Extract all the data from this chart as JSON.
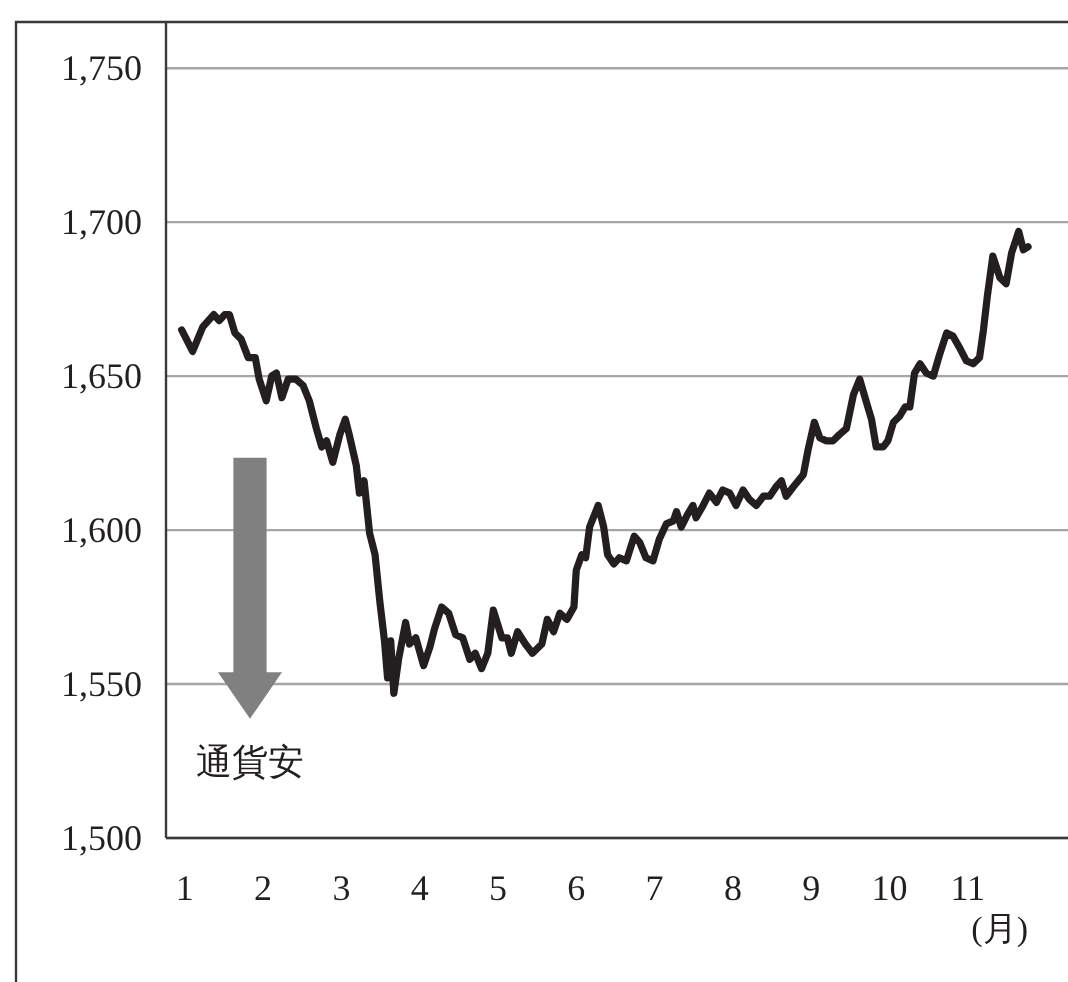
{
  "chart_data": {
    "type": "line",
    "xlabel": "(月)",
    "annotations": [
      "通貨安"
    ],
    "x": [
      0.96,
      1.1,
      1.23,
      1.37,
      1.44,
      1.51,
      1.57,
      1.64,
      1.72,
      1.81,
      1.9,
      1.95,
      2.04,
      2.11,
      2.17,
      2.24,
      2.32,
      2.42,
      2.51,
      2.59,
      2.68,
      2.75,
      2.81,
      2.89,
      2.98,
      3.05,
      3.1,
      3.19,
      3.23,
      3.29,
      3.36,
      3.43,
      3.49,
      3.55,
      3.59,
      3.63,
      3.67,
      3.73,
      3.82,
      3.87,
      3.95,
      4.05,
      4.13,
      4.19,
      4.28,
      4.37,
      4.46,
      4.55,
      4.64,
      4.71,
      4.79,
      4.87,
      4.94,
      5.05,
      5.12,
      5.17,
      5.25,
      5.35,
      5.44,
      5.56,
      5.63,
      5.71,
      5.79,
      5.88,
      5.97,
      6.0,
      6.07,
      6.12,
      6.17,
      6.28,
      6.35,
      6.4,
      6.48,
      6.55,
      6.64,
      6.74,
      6.81,
      6.89,
      6.98,
      7.06,
      7.15,
      7.24,
      7.28,
      7.34,
      7.42,
      7.49,
      7.53,
      7.62,
      7.7,
      7.79,
      7.87,
      7.96,
      8.04,
      8.13,
      8.21,
      8.3,
      8.39,
      8.47,
      8.55,
      8.62,
      8.68,
      8.77,
      8.9,
      8.96,
      9.04,
      9.11,
      9.19,
      9.28,
      9.36,
      9.45,
      9.54,
      9.62,
      9.7,
      9.77,
      9.83,
      9.92,
      9.98,
      10.05,
      10.13,
      10.2,
      10.26,
      10.32,
      10.39,
      10.47,
      10.56,
      10.64,
      10.73,
      10.81,
      10.9,
      10.98,
      11.07,
      11.15,
      11.2,
      11.25,
      11.32,
      11.41,
      11.49,
      11.56,
      11.65,
      11.71,
      11.77
    ],
    "series": [
      {
        "color": "#231f20",
        "values": [
          1665,
          1658,
          1666,
          1670,
          1668,
          1670,
          1670,
          1664,
          1662,
          1656,
          1656,
          1649,
          1642,
          1650,
          1651,
          1643,
          1649,
          1649,
          1647,
          1642,
          1633,
          1627,
          1629,
          1622,
          1631,
          1636,
          1631,
          1621,
          1612,
          1616,
          1599,
          1592,
          1577,
          1564,
          1552,
          1564,
          1547,
          1558,
          1570,
          1563,
          1565,
          1556,
          1562,
          1568,
          1575,
          1573,
          1566,
          1565,
          1558,
          1560,
          1555,
          1560,
          1574,
          1565,
          1565,
          1560,
          1567,
          1563,
          1560,
          1563,
          1571,
          1567,
          1573,
          1571,
          1575,
          1587,
          1592,
          1591,
          1601,
          1608,
          1601,
          1592,
          1589,
          1591,
          1590,
          1598,
          1596,
          1591,
          1590,
          1597,
          1602,
          1603,
          1606,
          1601,
          1605,
          1608,
          1604,
          1608,
          1612,
          1609,
          1613,
          1612,
          1608,
          1613,
          1610,
          1608,
          1611,
          1611,
          1614,
          1616,
          1611,
          1614,
          1618,
          1626,
          1635,
          1630,
          1629,
          1629,
          1631,
          1633,
          1644,
          1649,
          1642,
          1636,
          1627,
          1627,
          1629,
          1635,
          1637,
          1640,
          1640,
          1651,
          1654,
          1651,
          1650,
          1657,
          1664,
          1663,
          1659,
          1655,
          1654,
          1656,
          1665,
          1676,
          1689,
          1682,
          1680,
          1690,
          1697,
          1691,
          1692
        ]
      }
    ],
    "xlim": [
      0.76,
      12.28
    ],
    "xticks": [
      1,
      2,
      3,
      4,
      5,
      6,
      7,
      8,
      9,
      10,
      11
    ],
    "ylim": [
      1500,
      1765
    ],
    "yticks": [
      {
        "value": 1500,
        "label": "1,500"
      },
      {
        "value": 1550,
        "label": "1,550"
      },
      {
        "value": 1600,
        "label": "1,600"
      },
      {
        "value": 1650,
        "label": "1,650"
      },
      {
        "value": 1700,
        "label": "1,700"
      },
      {
        "value": 1750,
        "label": "1,750"
      }
    ],
    "grid": "y"
  }
}
